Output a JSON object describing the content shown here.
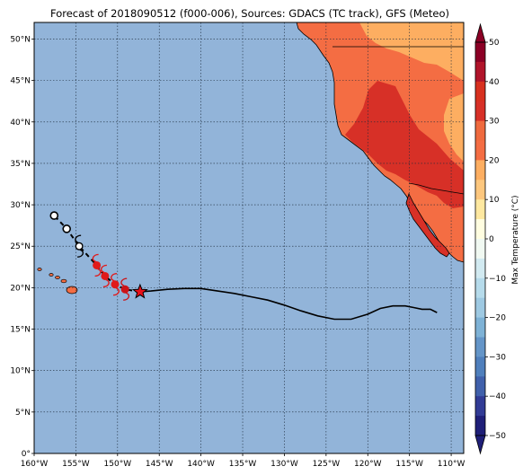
{
  "title": "Forecast of 2018090512 (f000-006), Sources: GDACS (TC track), GFS (Meteo)",
  "map": {
    "lon_range": [
      -160,
      -108.5
    ],
    "lat_range": [
      0,
      52
    ],
    "lon_ticks": [
      {
        "value": -160,
        "label": "160°W"
      },
      {
        "value": -155,
        "label": "155°W"
      },
      {
        "value": -150,
        "label": "150°W"
      },
      {
        "value": -145,
        "label": "145°W"
      },
      {
        "value": -140,
        "label": "140°W"
      },
      {
        "value": -135,
        "label": "135°W"
      },
      {
        "value": -130,
        "label": "130°W"
      },
      {
        "value": -125,
        "label": "125°W"
      },
      {
        "value": -120,
        "label": "120°W"
      },
      {
        "value": -115,
        "label": "115°W"
      },
      {
        "value": -110,
        "label": "110°W"
      }
    ],
    "lat_ticks": [
      {
        "value": 0,
        "label": "0°"
      },
      {
        "value": 5,
        "label": "5°N"
      },
      {
        "value": 10,
        "label": "10°N"
      },
      {
        "value": 15,
        "label": "15°N"
      },
      {
        "value": 20,
        "label": "20°N"
      },
      {
        "value": 25,
        "label": "25°N"
      },
      {
        "value": 30,
        "label": "30°N"
      },
      {
        "value": 35,
        "label": "35°N"
      },
      {
        "value": 40,
        "label": "40°N"
      },
      {
        "value": 45,
        "label": "45°N"
      },
      {
        "value": 50,
        "label": "50°N"
      }
    ],
    "grid": true,
    "ocean_color": "#92b4d9",
    "observed_track": [
      [
        -111.7,
        17.0
      ],
      [
        -112.5,
        17.4
      ],
      [
        -113.5,
        17.4
      ],
      [
        -114.5,
        17.6
      ],
      [
        -115.5,
        17.8
      ],
      [
        -117.0,
        17.8
      ],
      [
        -118.5,
        17.5
      ],
      [
        -120.0,
        16.8
      ],
      [
        -122.0,
        16.2
      ],
      [
        -124.0,
        16.2
      ],
      [
        -126.0,
        16.6
      ],
      [
        -128.0,
        17.2
      ],
      [
        -130.0,
        17.9
      ],
      [
        -132.0,
        18.5
      ],
      [
        -134.0,
        18.9
      ],
      [
        -136.0,
        19.3
      ],
      [
        -138.0,
        19.6
      ],
      [
        -140.0,
        19.9
      ],
      [
        -142.0,
        19.9
      ],
      [
        -144.0,
        19.8
      ],
      [
        -146.0,
        19.6
      ],
      [
        -147.3,
        19.5
      ]
    ],
    "current_position": {
      "lon": -147.3,
      "lat": 19.5,
      "marker": "star-icon",
      "color": "#e8101a"
    },
    "forecast_points": [
      {
        "lon": -149.1,
        "lat": 19.8,
        "symbol": "hurricane-icon",
        "color": "#cc1418"
      },
      {
        "lon": -150.3,
        "lat": 20.4,
        "symbol": "hurricane-icon",
        "color": "#e01b1b"
      },
      {
        "lon": -151.5,
        "lat": 21.4,
        "symbol": "hurricane-icon",
        "color": "#e01b1b"
      },
      {
        "lon": -152.5,
        "lat": 22.7,
        "symbol": "hurricane-icon",
        "color": "#e01b1b"
      },
      {
        "lon": -154.6,
        "lat": 25.0,
        "symbol": "tropical-storm-icon",
        "color": "#ffffff"
      },
      {
        "lon": -156.1,
        "lat": 27.1,
        "symbol": "depression-icon",
        "color": "#ffffff"
      },
      {
        "lon": -157.6,
        "lat": 28.7,
        "symbol": "depression-icon",
        "color": "#ffffff"
      }
    ]
  },
  "colorbar": {
    "label": "Max Temperature (°C)",
    "ticks": [
      {
        "value": 50,
        "label": "50"
      },
      {
        "value": 40,
        "label": "40"
      },
      {
        "value": 30,
        "label": "30"
      },
      {
        "value": 20,
        "label": "20"
      },
      {
        "value": 10,
        "label": "10"
      },
      {
        "value": 0,
        "label": "0"
      },
      {
        "value": -10,
        "label": "−10"
      },
      {
        "value": -20,
        "label": "−20"
      },
      {
        "value": -30,
        "label": "−30"
      },
      {
        "value": -40,
        "label": "−40"
      },
      {
        "value": -50,
        "label": "−50"
      }
    ],
    "bands": [
      {
        "from": 45,
        "to": 50,
        "color": "#8b0025"
      },
      {
        "from": 40,
        "to": 45,
        "color": "#b0142a"
      },
      {
        "from": 35,
        "to": 40,
        "color": "#d7301f"
      },
      {
        "from": 30,
        "to": 35,
        "color": "#d73027"
      },
      {
        "from": 25,
        "to": 30,
        "color": "#ef6a3e"
      },
      {
        "from": 20,
        "to": 25,
        "color": "#f46d43"
      },
      {
        "from": 15,
        "to": 20,
        "color": "#fdae61"
      },
      {
        "from": 10,
        "to": 15,
        "color": "#fdc77e"
      },
      {
        "from": 5,
        "to": 10,
        "color": "#fee8a0"
      },
      {
        "from": 0,
        "to": 5,
        "color": "#fffde0"
      },
      {
        "from": -5,
        "to": 0,
        "color": "#f1f9f2"
      },
      {
        "from": -10,
        "to": -5,
        "color": "#d2eaf1"
      },
      {
        "from": -15,
        "to": -10,
        "color": "#b6dbeb"
      },
      {
        "from": -20,
        "to": -15,
        "color": "#9ec9e2"
      },
      {
        "from": -25,
        "to": -20,
        "color": "#7eb2d6"
      },
      {
        "from": -30,
        "to": -25,
        "color": "#6495c8"
      },
      {
        "from": -35,
        "to": -30,
        "color": "#4f7fbc"
      },
      {
        "from": -40,
        "to": -35,
        "color": "#4060ab"
      },
      {
        "from": -45,
        "to": -40,
        "color": "#313b95"
      },
      {
        "from": -50,
        "to": -45,
        "color": "#1f1f78"
      }
    ]
  }
}
